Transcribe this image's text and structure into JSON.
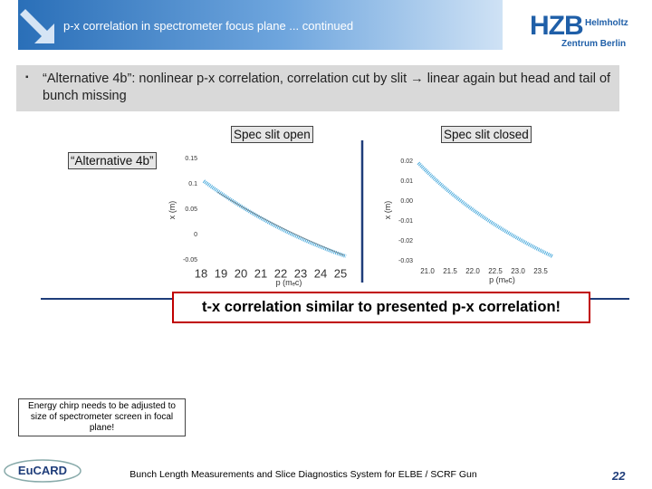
{
  "header": {
    "title": "p-x correlation in spectrometer focus plane ... continued"
  },
  "logo": {
    "name": "HZB",
    "line1": "Helmholtz",
    "line2": "Zentrum Berlin"
  },
  "bullet": "“Alternative 4b”: nonlinear p-x correlation, correlation cut by slit → linear again but head and tail of bunch missing",
  "labels": {
    "open": "Spec slit open",
    "closed": "Spec slit closed",
    "alt": "“Alternative 4b”"
  },
  "plots": {
    "left": {
      "ylabel": "x (m)",
      "xlabel": "p (mₑc)",
      "yticks": [
        "0.15",
        "0.1",
        "0.05",
        "0",
        "-0.05"
      ],
      "xticks": [
        "18",
        "19",
        "20",
        "21",
        "22",
        "23",
        "24",
        "25"
      ]
    },
    "right": {
      "ylabel": "x (m)",
      "xlabel": "p (mₑc)",
      "yticks": [
        "0.02",
        "0.01",
        "0.00",
        "-0.01",
        "-0.02",
        "-0.03"
      ],
      "xticks": [
        "21.0",
        "21.5",
        "22.0",
        "22.5",
        "23.0",
        "23.5"
      ]
    }
  },
  "highlight": "t-x correlation similar to presented p-x correlation!",
  "note": "Energy chirp needs to be adjusted to size of spectrometer screen in focal plane!",
  "footer": {
    "logo": "EuCARD",
    "text": "Bunch Length Measurements and Slice Diagnostics System for ELBE / SCRF Gun",
    "page": "22"
  }
}
